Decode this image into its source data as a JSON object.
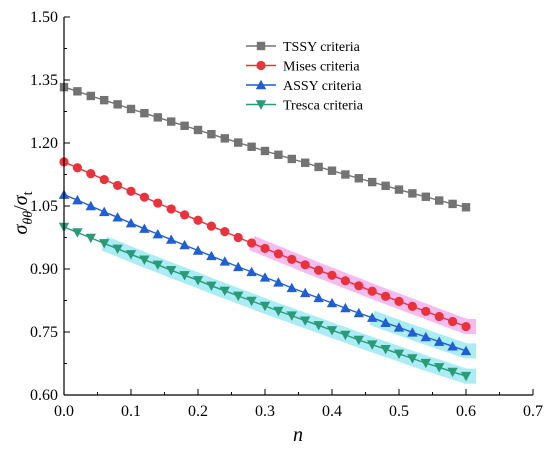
{
  "chart_data": {
    "type": "line",
    "title": "",
    "xlabel": "n",
    "ylabel": {
      "num_main": "σ",
      "num_sub": "θθ",
      "slash": "/",
      "den_main": "σ",
      "den_sub": "t"
    },
    "xlim": [
      0.0,
      0.7
    ],
    "ylim": [
      0.6,
      1.5
    ],
    "x_ticks": [
      0.0,
      0.1,
      0.2,
      0.3,
      0.4,
      0.5,
      0.6,
      0.7
    ],
    "y_ticks": [
      0.6,
      0.75,
      0.9,
      1.05,
      1.2,
      1.35,
      1.5
    ],
    "x_tick_labels": [
      "0.0",
      "0.1",
      "0.2",
      "0.3",
      "0.4",
      "0.5",
      "0.6",
      "0.7"
    ],
    "y_tick_labels": [
      "0.60",
      "0.75",
      "0.90",
      "1.05",
      "1.20",
      "1.35",
      "1.50"
    ],
    "grid": false,
    "legend_position": "top-right",
    "x": [
      0.0,
      0.02,
      0.04,
      0.06,
      0.08,
      0.1,
      0.12,
      0.14,
      0.16,
      0.18,
      0.2,
      0.22,
      0.24,
      0.26,
      0.28,
      0.3,
      0.32,
      0.34,
      0.36,
      0.38,
      0.4,
      0.42,
      0.44,
      0.46,
      0.48,
      0.5,
      0.52,
      0.54,
      0.56,
      0.58,
      0.6
    ],
    "series": [
      {
        "name": "TSSY criteria",
        "color": "#737373",
        "marker": "square",
        "values": [
          1.333,
          1.323,
          1.312,
          1.302,
          1.292,
          1.281,
          1.271,
          1.261,
          1.251,
          1.241,
          1.231,
          1.221,
          1.211,
          1.201,
          1.191,
          1.181,
          1.172,
          1.162,
          1.153,
          1.143,
          1.134,
          1.125,
          1.116,
          1.107,
          1.098,
          1.089,
          1.08,
          1.072,
          1.063,
          1.055,
          1.047
        ]
      },
      {
        "name": "Mises criteria",
        "color": "#e8323c",
        "marker": "circle",
        "values": [
          1.155,
          1.141,
          1.127,
          1.113,
          1.099,
          1.085,
          1.071,
          1.057,
          1.043,
          1.029,
          1.016,
          1.002,
          0.989,
          0.975,
          0.962,
          0.949,
          0.936,
          0.923,
          0.91,
          0.897,
          0.885,
          0.872,
          0.86,
          0.847,
          0.835,
          0.823,
          0.811,
          0.799,
          0.787,
          0.775,
          0.763
        ]
      },
      {
        "name": "ASSY criteria",
        "color": "#1f5fd1",
        "marker": "triangle-up",
        "values": [
          1.077,
          1.064,
          1.05,
          1.036,
          1.023,
          1.009,
          0.996,
          0.983,
          0.97,
          0.957,
          0.944,
          0.931,
          0.918,
          0.905,
          0.893,
          0.88,
          0.868,
          0.855,
          0.843,
          0.831,
          0.819,
          0.807,
          0.795,
          0.784,
          0.772,
          0.761,
          0.749,
          0.738,
          0.727,
          0.716,
          0.705
        ]
      },
      {
        "name": "Tresca criteria",
        "color": "#2a9a78",
        "marker": "triangle-down",
        "values": [
          1.0,
          0.987,
          0.974,
          0.961,
          0.948,
          0.935,
          0.922,
          0.91,
          0.897,
          0.885,
          0.873,
          0.86,
          0.848,
          0.836,
          0.824,
          0.812,
          0.8,
          0.789,
          0.777,
          0.766,
          0.754,
          0.743,
          0.731,
          0.72,
          0.709,
          0.698,
          0.687,
          0.676,
          0.666,
          0.655,
          0.645
        ]
      }
    ]
  }
}
